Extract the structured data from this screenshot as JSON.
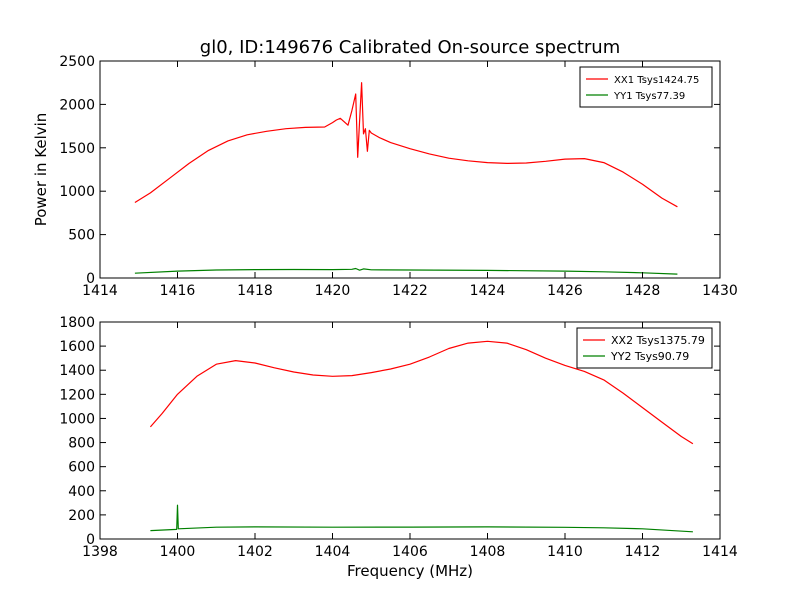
{
  "title": "gl0, ID:149676 Calibrated On-source spectrum",
  "colors": {
    "series_red": "#ff0000",
    "series_green": "#008000",
    "axes": "#000000",
    "background": "#ffffff"
  },
  "chart_data": [
    {
      "type": "line",
      "title": "gl0, ID:149676 Calibrated On-source spectrum",
      "xlabel": "",
      "ylabel": "Power in Kelvin",
      "xlim": [
        1414,
        1430
      ],
      "ylim": [
        0,
        2500
      ],
      "xticks": [
        "1414",
        "1416",
        "1418",
        "1420",
        "1422",
        "1424",
        "1426",
        "1428",
        "1430"
      ],
      "yticks": [
        "0",
        "500",
        "1000",
        "1500",
        "2000",
        "2500"
      ],
      "legend_position": "top-right",
      "grid": false,
      "series": [
        {
          "name": "XX1 Tsys1424.75",
          "color": "#ff0000",
          "x": [
            1414.9,
            1415.3,
            1415.8,
            1416.3,
            1416.8,
            1417.3,
            1417.8,
            1418.3,
            1418.8,
            1419.3,
            1419.8,
            1420.0,
            1420.1,
            1420.2,
            1420.4,
            1420.5,
            1420.6,
            1420.65,
            1420.75,
            1420.8,
            1420.85,
            1420.9,
            1420.95,
            1421.0,
            1421.2,
            1421.5,
            1422.0,
            1422.5,
            1423.0,
            1423.5,
            1424.0,
            1424.5,
            1425.0,
            1425.5,
            1426.0,
            1426.5,
            1427.0,
            1427.5,
            1428.0,
            1428.5,
            1428.9
          ],
          "values": [
            870,
            980,
            1150,
            1320,
            1470,
            1580,
            1650,
            1690,
            1720,
            1735,
            1740,
            1790,
            1820,
            1840,
            1760,
            1930,
            2120,
            1390,
            2250,
            1660,
            1720,
            1460,
            1700,
            1670,
            1620,
            1560,
            1490,
            1430,
            1380,
            1350,
            1330,
            1320,
            1325,
            1345,
            1370,
            1375,
            1330,
            1220,
            1080,
            920,
            820
          ]
        },
        {
          "name": "YY1 Tsys77.39",
          "color": "#008000",
          "x": [
            1414.9,
            1416.0,
            1417.0,
            1418.0,
            1419.0,
            1420.0,
            1420.5,
            1420.6,
            1420.7,
            1420.8,
            1421.0,
            1422.0,
            1424.0,
            1426.0,
            1427.0,
            1428.0,
            1428.9
          ],
          "values": [
            55,
            80,
            92,
            97,
            98,
            97,
            100,
            110,
            90,
            105,
            95,
            92,
            88,
            80,
            72,
            60,
            45
          ]
        }
      ]
    },
    {
      "type": "line",
      "title": "",
      "xlabel": "Frequency (MHz)",
      "ylabel": "",
      "xlim": [
        1398,
        1414
      ],
      "ylim": [
        0,
        1800
      ],
      "xticks": [
        "1398",
        "1400",
        "1402",
        "1404",
        "1406",
        "1408",
        "1410",
        "1412",
        "1414"
      ],
      "yticks": [
        "0",
        "200",
        "400",
        "600",
        "800",
        "1000",
        "1200",
        "1400",
        "1600",
        "1800"
      ],
      "legend_position": "top-right",
      "grid": false,
      "series": [
        {
          "name": "XX2 Tsys1375.79",
          "color": "#ff0000",
          "x": [
            1399.3,
            1399.6,
            1400.0,
            1400.5,
            1401.0,
            1401.5,
            1402.0,
            1402.5,
            1403.0,
            1403.5,
            1404.0,
            1404.5,
            1405.0,
            1405.5,
            1406.0,
            1406.5,
            1407.0,
            1407.5,
            1408.0,
            1408.5,
            1409.0,
            1409.5,
            1410.0,
            1410.5,
            1411.0,
            1411.5,
            1412.0,
            1412.5,
            1413.0,
            1413.3
          ],
          "values": [
            930,
            1040,
            1200,
            1350,
            1450,
            1480,
            1460,
            1420,
            1385,
            1360,
            1350,
            1355,
            1380,
            1410,
            1450,
            1510,
            1580,
            1625,
            1640,
            1625,
            1570,
            1500,
            1440,
            1390,
            1320,
            1210,
            1090,
            970,
            850,
            790
          ]
        },
        {
          "name": "YY2 Tsys90.79",
          "color": "#008000",
          "x": [
            1399.3,
            1399.98,
            1400.0,
            1400.02,
            1401.0,
            1402.0,
            1404.0,
            1406.0,
            1408.0,
            1410.0,
            1411.0,
            1412.0,
            1413.3
          ],
          "values": [
            70,
            80,
            280,
            85,
            98,
            100,
            98,
            99,
            100,
            97,
            93,
            85,
            60
          ]
        }
      ]
    }
  ]
}
